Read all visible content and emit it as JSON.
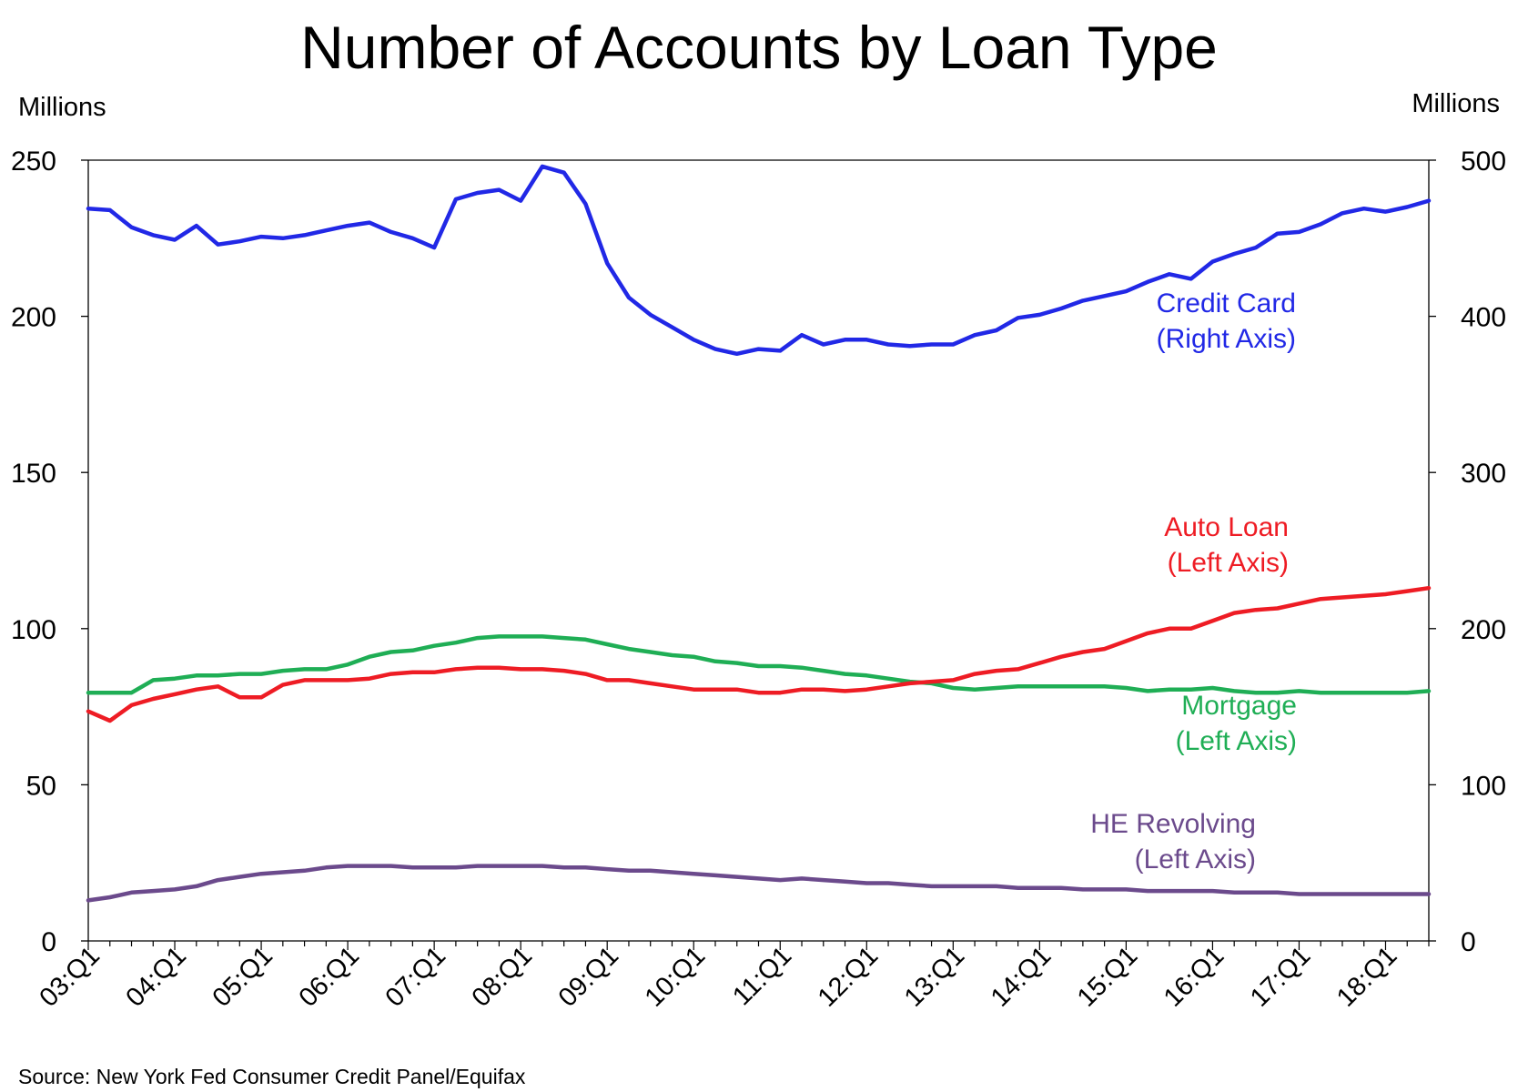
{
  "chart_data": {
    "type": "line",
    "title": "Number of Accounts by Loan Type",
    "left_unit": "Millions",
    "right_unit": "Millions",
    "source": "Source: New York Fed Consumer Credit Panel/Equifax",
    "ylim_left": [
      0,
      250
    ],
    "ylim_right": [
      0,
      500
    ],
    "yticks_left": [
      "0",
      "50",
      "100",
      "150",
      "200",
      "250"
    ],
    "yticks_right": [
      "0",
      "100",
      "200",
      "300",
      "400",
      "500"
    ],
    "xtick_labels": [
      "03:Q1",
      "04:Q1",
      "05:Q1",
      "06:Q1",
      "07:Q1",
      "08:Q1",
      "09:Q1",
      "10:Q1",
      "11:Q1",
      "12:Q1",
      "13:Q1",
      "14:Q1",
      "15:Q1",
      "16:Q1",
      "17:Q1",
      "18:Q1"
    ],
    "grid": false,
    "colors": {
      "credit_card": "#2128e6",
      "auto_loan": "#ee1c24",
      "mortgage": "#1fae55",
      "he_revolving": "#6b4a8c"
    },
    "series": [
      {
        "key": "credit_card",
        "axis": "right",
        "label_line1": "Credit Card",
        "label_line2": "(Right Axis)",
        "values": [
          469,
          468,
          457,
          452,
          449,
          458,
          446,
          448,
          451,
          450,
          452,
          455,
          458,
          460,
          454,
          450,
          444,
          475,
          479,
          481,
          474,
          496,
          492,
          472,
          434,
          412,
          401,
          393,
          385,
          379,
          376,
          379,
          378,
          388,
          382,
          385,
          385,
          382,
          381,
          382,
          382,
          388,
          391,
          399,
          401,
          405,
          410,
          413,
          416,
          422,
          427,
          424,
          435,
          440,
          444,
          453,
          454,
          459,
          466,
          469,
          467,
          470,
          474
        ]
      },
      {
        "key": "auto_loan",
        "axis": "left",
        "label_line1": "Auto Loan",
        "label_line2": "(Left Axis)",
        "values": [
          73.5,
          70.5,
          75.5,
          77.5,
          79,
          80.5,
          81.5,
          78,
          78,
          82,
          83.5,
          83.5,
          83.5,
          84,
          85.5,
          86,
          86,
          87,
          87.5,
          87.5,
          87,
          87,
          86.5,
          85.5,
          83.5,
          83.5,
          82.5,
          81.5,
          80.5,
          80.5,
          80.5,
          79.5,
          79.5,
          80.5,
          80.5,
          80,
          80.5,
          81.5,
          82.5,
          83,
          83.5,
          85.5,
          86.5,
          87,
          89,
          91,
          92.5,
          93.5,
          96,
          98.5,
          100,
          100,
          102.5,
          105,
          106,
          106.5,
          108,
          109.5,
          110,
          110.5,
          111,
          112,
          113
        ]
      },
      {
        "key": "mortgage",
        "axis": "left",
        "label_line1": "Mortgage",
        "label_line2": "(Left Axis)",
        "values": [
          79.5,
          79.5,
          79.5,
          83.5,
          84,
          85,
          85,
          85.5,
          85.5,
          86.5,
          87,
          87,
          88.5,
          91,
          92.5,
          93,
          94.5,
          95.5,
          97,
          97.5,
          97.5,
          97.5,
          97,
          96.5,
          95,
          93.5,
          92.5,
          91.5,
          91,
          89.5,
          89,
          88,
          88,
          87.5,
          86.5,
          85.5,
          85,
          84,
          83,
          82.5,
          81,
          80.5,
          81,
          81.5,
          81.5,
          81.5,
          81.5,
          81.5,
          81,
          80,
          80.5,
          80.5,
          81,
          80,
          79.5,
          79.5,
          80,
          79.5,
          79.5,
          79.5,
          79.5,
          79.5,
          80
        ]
      },
      {
        "key": "he_revolving",
        "axis": "left",
        "label_line1": "HE Revolving",
        "label_line2": "(Left Axis)",
        "values": [
          13,
          14,
          15.5,
          16,
          16.5,
          17.5,
          19.5,
          20.5,
          21.5,
          22,
          22.5,
          23.5,
          24,
          24,
          24,
          23.5,
          23.5,
          23.5,
          24,
          24,
          24,
          24,
          23.5,
          23.5,
          23,
          22.5,
          22.5,
          22,
          21.5,
          21,
          20.5,
          20,
          19.5,
          20,
          19.5,
          19,
          18.5,
          18.5,
          18,
          17.5,
          17.5,
          17.5,
          17.5,
          17,
          17,
          17,
          16.5,
          16.5,
          16.5,
          16,
          16,
          16,
          16,
          15.5,
          15.5,
          15.5,
          15,
          15,
          15,
          15,
          15,
          15,
          15
        ]
      }
    ]
  }
}
